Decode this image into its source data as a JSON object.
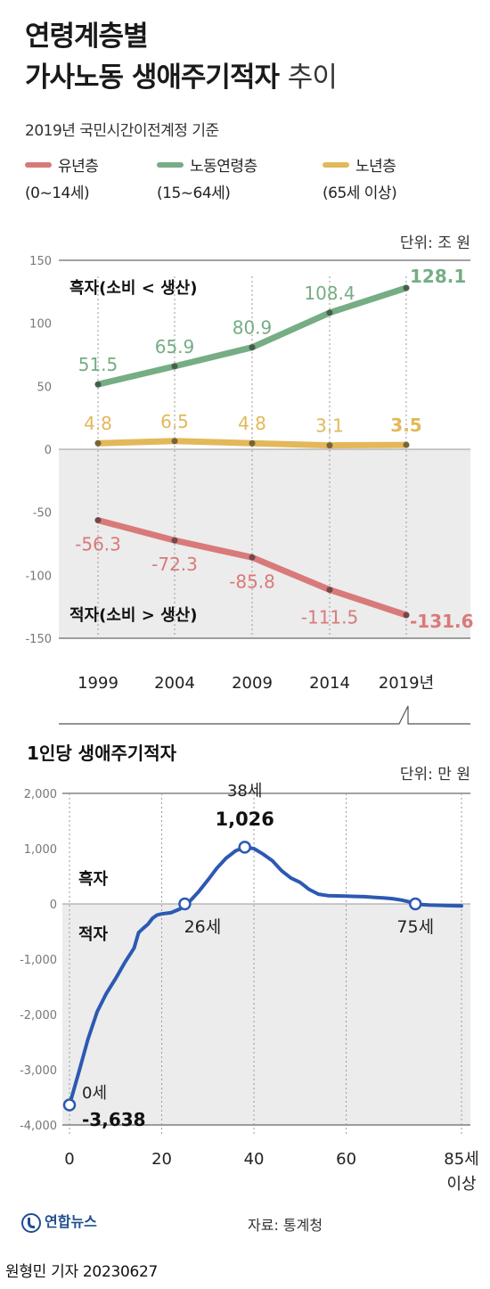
{
  "header": {
    "title_line1": "연령계층별",
    "title_line2": "가사노동 생애주기적자",
    "title_suffix": "추이",
    "subtitle": "2019년 국민시간이전계정 기준"
  },
  "legend": [
    {
      "label": "유년층",
      "sub": "(0~14세)",
      "color": "#d97a7a"
    },
    {
      "label": "노동연령층",
      "sub": "(15~64세)",
      "color": "#76ad84"
    },
    {
      "label": "노년층",
      "sub": "(65세 이상)",
      "color": "#e3b85a"
    }
  ],
  "colors": {
    "youth": "#d97a7a",
    "working": "#76ad84",
    "elderly": "#e3b85a",
    "line2": "#2c59b3"
  },
  "chart_data": [
    {
      "type": "line",
      "unit": "단위: 조 원",
      "categories": [
        "1999",
        "2004",
        "2009",
        "2014",
        "2019년"
      ],
      "series": [
        {
          "name": "노동연령층",
          "values": [
            51.5,
            65.9,
            80.9,
            108.4,
            128.1
          ],
          "labels": [
            "51.5",
            "65.9",
            "80.9",
            "108.4",
            "128.1"
          ]
        },
        {
          "name": "노년층",
          "values": [
            4.8,
            6.5,
            4.8,
            3.1,
            3.5
          ],
          "labels": [
            "4.8",
            "6.5",
            "4.8",
            "3.1",
            "3.5"
          ]
        },
        {
          "name": "유년층",
          "values": [
            -56.3,
            -72.3,
            -85.8,
            -111.5,
            -131.6
          ],
          "labels": [
            "-56.3",
            "-72.3",
            "-85.8",
            "-111.5",
            "-131.6"
          ]
        }
      ],
      "ylim": [
        -150,
        150
      ],
      "yticks": [
        150,
        100,
        50,
        0,
        -50,
        -100,
        -150
      ],
      "ytick_labels": [
        "150",
        "100",
        "50",
        "0",
        "-50",
        "-100",
        "-150"
      ],
      "surplus_label": "흑자(소비 < 생산)",
      "deficit_label": "적자(소비 > 생산)"
    },
    {
      "type": "line",
      "title": "1인당 생애주기적자",
      "unit": "단위: 만 원",
      "x": [
        0,
        2,
        4,
        6,
        8,
        10,
        12,
        14,
        15,
        16,
        17,
        18,
        19,
        20,
        22,
        24,
        25,
        26,
        28,
        30,
        32,
        34,
        36,
        38,
        40,
        42,
        44,
        46,
        48,
        50,
        52,
        54,
        56,
        58,
        60,
        62,
        64,
        66,
        68,
        70,
        72,
        74,
        75,
        76,
        78,
        80,
        82,
        85
      ],
      "y": [
        -3638,
        -3050,
        -2450,
        -1950,
        -1620,
        -1350,
        -1060,
        -800,
        -520,
        -440,
        -370,
        -260,
        -200,
        -180,
        -160,
        -90,
        0,
        40,
        220,
        430,
        650,
        830,
        960,
        1026,
        1000,
        900,
        780,
        600,
        470,
        390,
        260,
        175,
        150,
        145,
        140,
        135,
        130,
        120,
        110,
        95,
        70,
        30,
        0,
        -10,
        -20,
        -25,
        -30,
        -35
      ],
      "xlim": [
        0,
        85
      ],
      "ylim": [
        -4000,
        2000
      ],
      "xticks": [
        0,
        20,
        40,
        60,
        85
      ],
      "xtick_labels": [
        "0",
        "20",
        "40",
        "60",
        "85세"
      ],
      "xtick_sub": "이상",
      "yticks": [
        2000,
        1000,
        0,
        -1000,
        -2000,
        -3000,
        -4000
      ],
      "ytick_labels": [
        "2,000",
        "1,000",
        "0",
        "-1,000",
        "-2,000",
        "-3,000",
        "-4,000"
      ],
      "surplus_label": "흑자",
      "deficit_label": "적자",
      "annotations": [
        {
          "x": 0,
          "y": -3638,
          "label": "0세",
          "value": "-3,638"
        },
        {
          "x": 38,
          "y": 1026,
          "label": "38세",
          "value": "1,026"
        },
        {
          "x": 25,
          "y": 0,
          "label": "26세"
        },
        {
          "x": 75,
          "y": 0,
          "label": "75세"
        }
      ]
    }
  ],
  "footer": {
    "logo": "연합뉴스",
    "source": "자료: 통계청",
    "byline": "원형민 기자  20230627"
  }
}
